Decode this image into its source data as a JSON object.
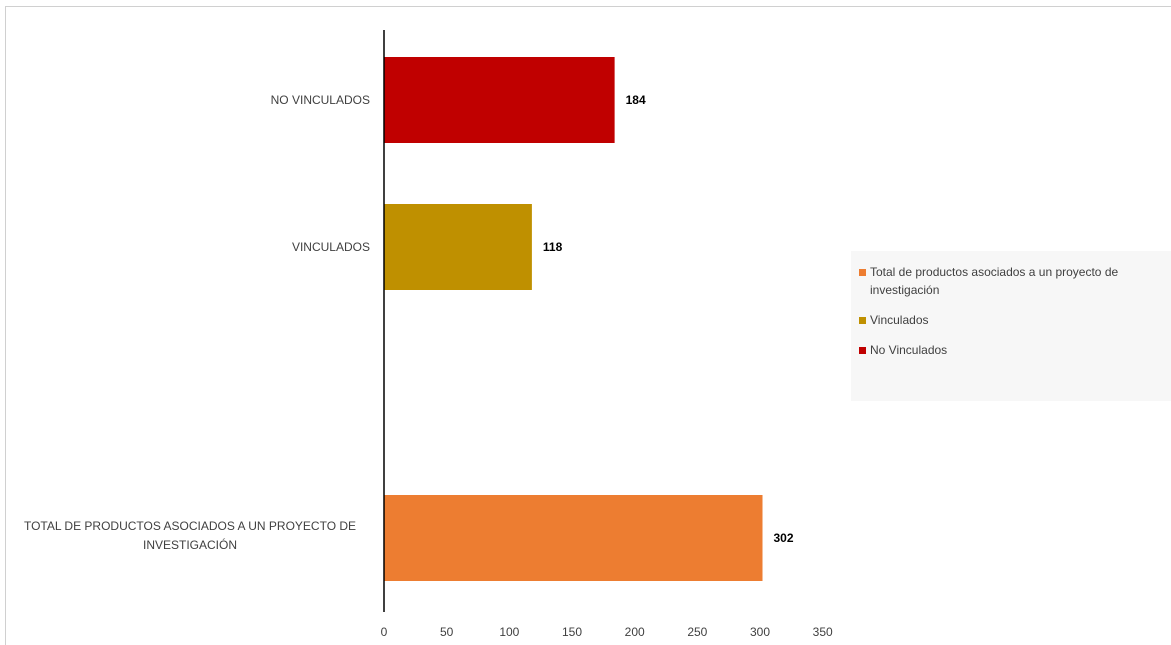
{
  "chart_data": {
    "type": "bar",
    "orientation": "horizontal",
    "categories": [
      "TOTAL DE PRODUCTOS ASOCIADOS A UN PROYECTO DE INVESTIGACIÓN",
      "VINCULADOS",
      "NO VINCULADOS"
    ],
    "series": [
      {
        "name": "Total de productos asociados a un proyecto de investigación",
        "color": "#ed7d31",
        "values": [
          302,
          null,
          null
        ]
      },
      {
        "name": "Vinculados",
        "color": "#bf9000",
        "values": [
          null,
          118,
          null
        ]
      },
      {
        "name": "No Vinculados",
        "color": "#c00000",
        "values": [
          null,
          null,
          184
        ]
      }
    ],
    "data_labels": [
      "302",
      "118",
      "184"
    ],
    "xlim": [
      0,
      350
    ],
    "xticks": [
      0,
      50,
      100,
      150,
      200,
      250,
      300,
      350
    ],
    "title": "",
    "xlabel": "",
    "ylabel": "",
    "grid": false,
    "legend_position": "right"
  },
  "legend": [
    {
      "label": "Total de productos asociados a un proyecto de investigación",
      "color": "#ed7d31"
    },
    {
      "label": "Vinculados",
      "color": "#bf9000"
    },
    {
      "label": "No Vinculados",
      "color": "#c00000"
    }
  ]
}
